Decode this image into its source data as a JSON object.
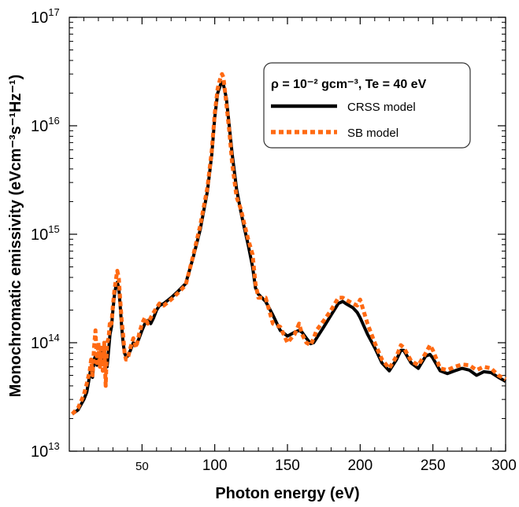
{
  "chart_data": {
    "type": "line",
    "xlabel": "Photon energy (eV)",
    "ylabel": "Monochromatic emissivity (eVcm⁻³s⁻¹Hz⁻¹)",
    "xlim": [
      0,
      300
    ],
    "ylim": [
      10000000000000.0,
      1e+17
    ],
    "yscale": "log",
    "grid": false,
    "legend_position": "top-right",
    "legend_title": "ρ = 10⁻² gcm⁻³, Te = 40 eV",
    "x_ticks": [
      50,
      100,
      150,
      200,
      250,
      300
    ],
    "x_tick_labels": [
      "50",
      "100",
      "150",
      "200",
      "250",
      "300"
    ],
    "y_ticks": [
      {
        "value": 10000000000000.0,
        "base": "10",
        "exp": "13"
      },
      {
        "value": 100000000000000.0,
        "base": "10",
        "exp": "14"
      },
      {
        "value": 1000000000000000.0,
        "base": "10",
        "exp": "15"
      },
      {
        "value": 1e+16,
        "base": "10",
        "exp": "16"
      },
      {
        "value": 1e+17,
        "base": "10",
        "exp": "17"
      }
    ],
    "series": [
      {
        "name": "CRSS model",
        "color": "#000000",
        "style": "solid",
        "x": [
          2,
          6,
          10,
          12,
          14,
          15,
          16,
          17,
          18,
          19,
          20,
          21,
          22,
          23,
          24,
          25,
          26,
          27,
          28,
          29,
          30,
          31,
          32,
          33,
          34,
          35,
          36,
          37,
          38,
          39,
          40,
          42,
          44,
          46,
          48,
          50,
          52,
          54,
          56,
          58,
          60,
          62,
          65,
          70,
          75,
          80,
          85,
          90,
          95,
          98,
          100,
          102,
          104,
          105,
          106,
          108,
          110,
          112,
          115,
          118,
          120,
          123,
          126,
          128,
          130,
          135,
          140,
          145,
          150,
          155,
          158,
          160,
          163,
          166,
          168,
          170,
          175,
          180,
          185,
          188,
          190,
          195,
          198,
          200,
          205,
          210,
          215,
          220,
          225,
          228,
          230,
          235,
          240,
          245,
          248,
          250,
          255,
          260,
          265,
          270,
          275,
          280,
          285,
          290,
          295,
          300
        ],
        "y": [
          22000000000000.0,
          24000000000000.0,
          30000000000000.0,
          35000000000000.0,
          50000000000000.0,
          60000000000000.0,
          48000000000000.0,
          70000000000000.0,
          75000000000000.0,
          62000000000000.0,
          80000000000000.0,
          72000000000000.0,
          85000000000000.0,
          75000000000000.0,
          65000000000000.0,
          75000000000000.0,
          60000000000000.0,
          85000000000000.0,
          120000000000000.0,
          140000000000000.0,
          200000000000000.0,
          270000000000000.0,
          330000000000000.0,
          360000000000000.0,
          320000000000000.0,
          220000000000000.0,
          140000000000000.0,
          100000000000000.0,
          80000000000000.0,
          75000000000000.0,
          75000000000000.0,
          85000000000000.0,
          100000000000000.0,
          95000000000000.0,
          110000000000000.0,
          130000000000000.0,
          150000000000000.0,
          160000000000000.0,
          150000000000000.0,
          170000000000000.0,
          200000000000000.0,
          220000000000000.0,
          230000000000000.0,
          260000000000000.0,
          300000000000000.0,
          350000000000000.0,
          600000000000000.0,
          1100000000000000.0,
          2500000000000000.0,
          5500000000000000.0,
          1.2e+16,
          2e+16,
          2.4e+16,
          2.5e+16,
          2.4e+16,
          1.8e+16,
          1e+16,
          5500000000000000.0,
          2600000000000000.0,
          1600000000000000.0,
          1200000000000000.0,
          800000000000000.0,
          500000000000000.0,
          320000000000000.0,
          280000000000000.0,
          240000000000000.0,
          180000000000000.0,
          130000000000000.0,
          115000000000000.0,
          125000000000000.0,
          130000000000000.0,
          125000000000000.0,
          110000000000000.0,
          98000000000000.0,
          100000000000000.0,
          110000000000000.0,
          140000000000000.0,
          180000000000000.0,
          230000000000000.0,
          240000000000000.0,
          230000000000000.0,
          210000000000000.0,
          190000000000000.0,
          170000000000000.0,
          120000000000000.0,
          90000000000000.0,
          65000000000000.0,
          55000000000000.0,
          70000000000000.0,
          85000000000000.0,
          85000000000000.0,
          65000000000000.0,
          58000000000000.0,
          75000000000000.0,
          78000000000000.0,
          72000000000000.0,
          55000000000000.0,
          52000000000000.0,
          55000000000000.0,
          58000000000000.0,
          56000000000000.0,
          50000000000000.0,
          54000000000000.0,
          53000000000000.0,
          48000000000000.0,
          44000000000000.0
        ]
      },
      {
        "name": "SB model",
        "color": "#ff6a13",
        "style": "dotted",
        "x": [
          2,
          6,
          10,
          12,
          14,
          15,
          16,
          17,
          18,
          19,
          20,
          21,
          22,
          23,
          24,
          25,
          26,
          27,
          28,
          29,
          30,
          31,
          32,
          33,
          34,
          35,
          36,
          37,
          38,
          39,
          40,
          42,
          44,
          46,
          48,
          50,
          52,
          54,
          56,
          58,
          60,
          62,
          65,
          70,
          75,
          80,
          85,
          90,
          95,
          98,
          100,
          102,
          104,
          105,
          106,
          108,
          110,
          112,
          115,
          118,
          120,
          123,
          126,
          128,
          130,
          135,
          140,
          145,
          150,
          155,
          158,
          160,
          163,
          166,
          168,
          170,
          175,
          180,
          185,
          188,
          190,
          195,
          198,
          200,
          205,
          210,
          215,
          220,
          225,
          228,
          230,
          235,
          240,
          245,
          248,
          250,
          255,
          260,
          265,
          270,
          275,
          280,
          285,
          290,
          295,
          300
        ],
        "y": [
          22000000000000.0,
          25000000000000.0,
          33000000000000.0,
          42000000000000.0,
          55000000000000.0,
          70000000000000.0,
          50000000000000.0,
          90000000000000.0,
          130000000000000.0,
          65000000000000.0,
          100000000000000.0,
          60000000000000.0,
          90000000000000.0,
          55000000000000.0,
          100000000000000.0,
          40000000000000.0,
          100000000000000.0,
          110000000000000.0,
          160000000000000.0,
          150000000000000.0,
          220000000000000.0,
          300000000000000.0,
          380000000000000.0,
          460000000000000.0,
          400000000000000.0,
          250000000000000.0,
          160000000000000.0,
          120000000000000.0,
          80000000000000.0,
          70000000000000.0,
          70000000000000.0,
          90000000000000.0,
          110000000000000.0,
          90000000000000.0,
          120000000000000.0,
          150000000000000.0,
          170000000000000.0,
          150000000000000.0,
          170000000000000.0,
          190000000000000.0,
          210000000000000.0,
          230000000000000.0,
          220000000000000.0,
          250000000000000.0,
          290000000000000.0,
          340000000000000.0,
          620000000000000.0,
          1200000000000000.0,
          2700000000000000.0,
          6000000000000000.0,
          1.3e+16,
          2.2e+16,
          2.8e+16,
          3e+16,
          2.8e+16,
          1.6e+16,
          9000000000000000.0,
          4500000000000000.0,
          2200000000000000.0,
          1700000000000000.0,
          1300000000000000.0,
          900000000000000.0,
          650000000000000.0,
          350000000000000.0,
          260000000000000.0,
          260000000000000.0,
          150000000000000.0,
          140000000000000.0,
          100000000000000.0,
          120000000000000.0,
          150000000000000.0,
          120000000000000.0,
          100000000000000.0,
          95000000000000.0,
          110000000000000.0,
          130000000000000.0,
          160000000000000.0,
          200000000000000.0,
          260000000000000.0,
          260000000000000.0,
          250000000000000.0,
          230000000000000.0,
          220000000000000.0,
          250000000000000.0,
          150000000000000.0,
          100000000000000.0,
          70000000000000.0,
          58000000000000.0,
          75000000000000.0,
          95000000000000.0,
          90000000000000.0,
          68000000000000.0,
          62000000000000.0,
          80000000000000.0,
          95000000000000.0,
          85000000000000.0,
          58000000000000.0,
          56000000000000.0,
          60000000000000.0,
          63000000000000.0,
          62000000000000.0,
          56000000000000.0,
          60000000000000.0,
          58000000000000.0,
          50000000000000.0,
          46000000000000.0
        ]
      }
    ]
  }
}
